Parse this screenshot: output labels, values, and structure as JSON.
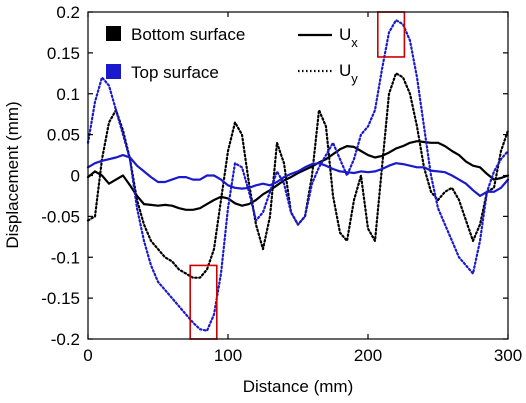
{
  "chart_data": {
    "type": "line",
    "xlabel": "Distance (mm)",
    "ylabel": "Displacement (mm)",
    "xlim": [
      0,
      300
    ],
    "ylim": [
      -0.2,
      0.2
    ],
    "xticks": [
      0,
      100,
      200,
      300
    ],
    "yticks": [
      -0.2,
      -0.15,
      -0.1,
      -0.05,
      0,
      0.05,
      0.1,
      0.15,
      0.2
    ],
    "grid": false,
    "legend": {
      "surfaces": [
        {
          "label": "Bottom surface",
          "color": "#000000"
        },
        {
          "label": "Top surface",
          "color": "#0000cc"
        }
      ],
      "components": [
        {
          "label": "U",
          "subscript": "x",
          "style": "solid"
        },
        {
          "label": "U",
          "subscript": "y",
          "style": "dotted"
        }
      ],
      "placement": "top"
    },
    "series": [
      {
        "surface": "Bottom surface",
        "component": "Ux",
        "color": "#000000",
        "style": "solid",
        "x": [
          0,
          5,
          10,
          15,
          20,
          25,
          30,
          35,
          40,
          45,
          50,
          55,
          60,
          65,
          70,
          75,
          80,
          85,
          90,
          95,
          100,
          105,
          110,
          115,
          120,
          125,
          130,
          135,
          140,
          145,
          150,
          155,
          160,
          165,
          170,
          175,
          180,
          185,
          190,
          195,
          200,
          205,
          210,
          215,
          220,
          225,
          230,
          235,
          240,
          245,
          250,
          255,
          260,
          265,
          270,
          275,
          280,
          285,
          290,
          295,
          300
        ],
        "y": [
          -0.002,
          0.005,
          0.0,
          -0.01,
          -0.005,
          0.0,
          -0.012,
          -0.025,
          -0.035,
          -0.036,
          -0.037,
          -0.036,
          -0.037,
          -0.04,
          -0.042,
          -0.042,
          -0.04,
          -0.035,
          -0.03,
          -0.026,
          -0.028,
          -0.034,
          -0.037,
          -0.035,
          -0.03,
          -0.023,
          -0.018,
          -0.012,
          -0.006,
          -0.002,
          0.003,
          0.007,
          0.011,
          0.016,
          0.02,
          0.026,
          0.032,
          0.036,
          0.035,
          0.03,
          0.025,
          0.022,
          0.024,
          0.028,
          0.033,
          0.036,
          0.04,
          0.042,
          0.041,
          0.04,
          0.04,
          0.036,
          0.03,
          0.025,
          0.017,
          0.012,
          0.01,
          0.002,
          -0.005,
          -0.003,
          0.0
        ]
      },
      {
        "surface": "Bottom surface",
        "component": "Uy",
        "color": "#000000",
        "style": "dotted",
        "x": [
          0,
          5,
          10,
          15,
          20,
          25,
          30,
          35,
          40,
          45,
          50,
          55,
          60,
          65,
          70,
          75,
          80,
          85,
          90,
          95,
          100,
          105,
          110,
          115,
          120,
          125,
          130,
          135,
          140,
          145,
          150,
          155,
          160,
          165,
          170,
          175,
          180,
          185,
          190,
          195,
          200,
          205,
          210,
          215,
          220,
          225,
          230,
          235,
          240,
          245,
          250,
          255,
          260,
          265,
          270,
          275,
          280,
          285,
          290,
          295,
          300
        ],
        "y": [
          -0.055,
          -0.05,
          0.02,
          0.065,
          0.08,
          0.055,
          0.02,
          -0.03,
          -0.06,
          -0.08,
          -0.09,
          -0.1,
          -0.105,
          -0.115,
          -0.12,
          -0.125,
          -0.125,
          -0.115,
          -0.09,
          -0.03,
          0.03,
          0.065,
          0.05,
          -0.01,
          -0.06,
          -0.09,
          -0.05,
          0.04,
          0.015,
          -0.045,
          -0.06,
          -0.05,
          0.0,
          0.08,
          0.06,
          -0.025,
          -0.07,
          -0.08,
          -0.03,
          0.0,
          -0.065,
          -0.08,
          0.01,
          0.1,
          0.125,
          0.12,
          0.1,
          0.06,
          0.01,
          -0.02,
          -0.03,
          -0.02,
          -0.015,
          -0.03,
          -0.055,
          -0.08,
          -0.06,
          -0.02,
          -0.015,
          0.03,
          0.055
        ]
      },
      {
        "surface": "Top surface",
        "component": "Ux",
        "color": "#1a1acc",
        "style": "solid",
        "x": [
          0,
          5,
          10,
          15,
          20,
          25,
          30,
          35,
          40,
          45,
          50,
          55,
          60,
          65,
          70,
          75,
          80,
          85,
          90,
          95,
          100,
          105,
          110,
          115,
          120,
          125,
          130,
          135,
          140,
          145,
          150,
          155,
          160,
          165,
          170,
          175,
          180,
          185,
          190,
          195,
          200,
          205,
          210,
          215,
          220,
          225,
          230,
          235,
          240,
          245,
          250,
          255,
          260,
          265,
          270,
          275,
          280,
          285,
          290,
          295,
          300
        ],
        "y": [
          0.01,
          0.015,
          0.018,
          0.02,
          0.022,
          0.025,
          0.022,
          0.012,
          0.005,
          -0.002,
          -0.008,
          -0.008,
          -0.005,
          -0.002,
          -0.002,
          -0.005,
          -0.005,
          0.0,
          0.0,
          -0.005,
          -0.012,
          -0.015,
          -0.016,
          -0.015,
          -0.012,
          -0.01,
          -0.012,
          -0.008,
          -0.002,
          0.002,
          0.005,
          0.01,
          0.014,
          0.015,
          0.012,
          0.008,
          0.005,
          0.004,
          0.003,
          0.005,
          0.004,
          0.005,
          0.008,
          0.012,
          0.015,
          0.014,
          0.012,
          0.01,
          0.01,
          0.006,
          0.005,
          0.004,
          0.0,
          -0.005,
          -0.01,
          -0.018,
          -0.025,
          -0.02,
          -0.02,
          -0.015,
          -0.005
        ]
      },
      {
        "surface": "Top surface",
        "component": "Uy",
        "color": "#1a1acc",
        "style": "dotted",
        "x": [
          0,
          5,
          10,
          15,
          20,
          25,
          30,
          35,
          40,
          45,
          50,
          55,
          60,
          65,
          70,
          75,
          80,
          85,
          90,
          95,
          100,
          105,
          110,
          115,
          120,
          125,
          130,
          135,
          140,
          145,
          150,
          155,
          160,
          165,
          170,
          175,
          180,
          185,
          190,
          195,
          200,
          205,
          210,
          215,
          220,
          225,
          230,
          235,
          240,
          245,
          250,
          255,
          260,
          265,
          270,
          275,
          280,
          285,
          290,
          295,
          300
        ],
        "y": [
          0.04,
          0.09,
          0.12,
          0.11,
          0.08,
          0.05,
          0.02,
          -0.04,
          -0.08,
          -0.11,
          -0.13,
          -0.14,
          -0.15,
          -0.16,
          -0.17,
          -0.18,
          -0.188,
          -0.19,
          -0.17,
          -0.12,
          -0.04,
          0.015,
          0.01,
          -0.02,
          -0.055,
          -0.045,
          -0.02,
          0.005,
          -0.01,
          -0.045,
          -0.06,
          -0.05,
          -0.01,
          0.01,
          0.025,
          0.04,
          0.02,
          0.0,
          0.02,
          0.05,
          0.06,
          0.08,
          0.13,
          0.175,
          0.19,
          0.185,
          0.165,
          0.12,
          0.06,
          0.0,
          -0.04,
          -0.06,
          -0.08,
          -0.1,
          -0.11,
          -0.12,
          -0.08,
          -0.02,
          0.005,
          0.02,
          0.03
        ]
      }
    ],
    "annotations": [
      {
        "type": "box",
        "color": "#cc0000",
        "x_range": [
          73,
          92
        ],
        "y_range": [
          -0.2,
          -0.11
        ]
      },
      {
        "type": "box",
        "color": "#cc0000",
        "x_range": [
          207,
          226
        ],
        "y_range": [
          0.145,
          0.2
        ]
      }
    ]
  }
}
